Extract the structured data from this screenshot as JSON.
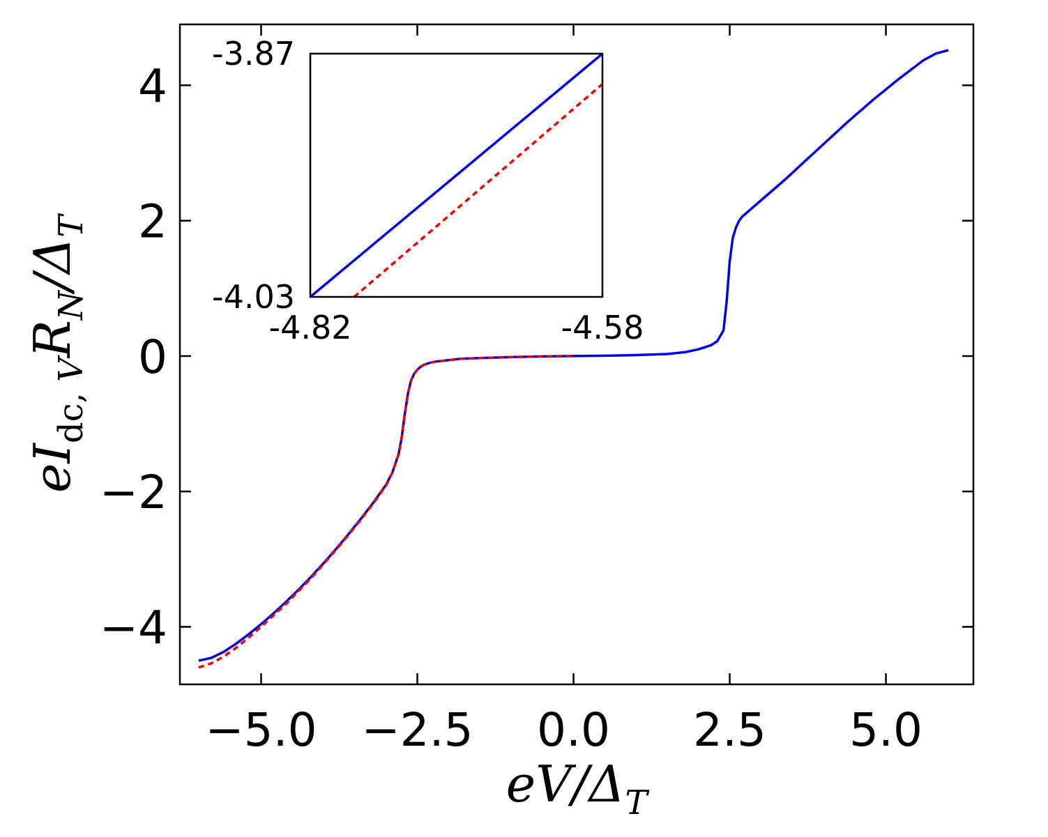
{
  "chart_data": [
    {
      "type": "line",
      "title": "",
      "xlabel": "eV/Δ_T",
      "ylabel": "eI_dc,V R_N/Δ_T",
      "xlabel_parts": {
        "a": "eV/Δ",
        "b": "T"
      },
      "ylabel_parts": {
        "a": "eI",
        "b": "dc, ",
        "c": "V",
        "d": "R",
        "e": "N",
        "f": "/Δ",
        "g": "T"
      },
      "xlim": [
        -6.3,
        6.4
      ],
      "ylim": [
        -4.85,
        4.9
      ],
      "xticks": [
        -5.0,
        -2.5,
        0.0,
        2.5,
        5.0
      ],
      "xtick_labels": [
        "−5.0",
        "−2.5",
        "0.0",
        "2.5",
        "5.0"
      ],
      "yticks": [
        -4,
        -2,
        0,
        2,
        4
      ],
      "ytick_labels": [
        "−4",
        "−2",
        "0",
        "2",
        "4"
      ],
      "grid": false,
      "series": [
        {
          "color": "#0000ee",
          "dash": "solid",
          "x": [
            -6.0,
            -5.8,
            -5.6,
            -5.4,
            -5.2,
            -5.0,
            -4.8,
            -4.6,
            -4.4,
            -4.2,
            -4.0,
            -3.8,
            -3.6,
            -3.4,
            -3.2,
            -3.0,
            -2.9,
            -2.8,
            -2.75,
            -2.7,
            -2.65,
            -2.6,
            -2.55,
            -2.5,
            -2.45,
            -2.4,
            -2.3,
            -2.2,
            -2.0,
            -1.8,
            -1.5,
            -1.0,
            -0.5,
            0.0,
            0.5,
            1.0,
            1.5,
            1.8,
            2.0,
            2.2,
            2.3,
            2.4,
            2.45,
            2.5,
            2.55,
            2.6,
            2.65,
            2.7,
            2.75,
            2.8,
            2.9,
            3.0,
            3.2,
            3.4,
            3.6,
            3.8,
            4.0,
            4.2,
            4.4,
            4.6,
            4.8,
            5.0,
            5.2,
            5.4,
            5.6,
            5.8,
            6.0
          ],
          "y": [
            -4.5,
            -4.46,
            -4.37,
            -4.25,
            -4.11,
            -3.96,
            -3.8,
            -3.63,
            -3.45,
            -3.26,
            -3.06,
            -2.85,
            -2.63,
            -2.4,
            -2.16,
            -1.9,
            -1.72,
            -1.45,
            -1.2,
            -0.85,
            -0.55,
            -0.36,
            -0.26,
            -0.2,
            -0.16,
            -0.13,
            -0.1,
            -0.08,
            -0.06,
            -0.04,
            -0.03,
            -0.015,
            -0.005,
            0.0,
            0.005,
            0.015,
            0.03,
            0.06,
            0.1,
            0.16,
            0.22,
            0.38,
            0.8,
            1.4,
            1.75,
            1.9,
            2.0,
            2.06,
            2.1,
            2.14,
            2.22,
            2.3,
            2.46,
            2.62,
            2.79,
            2.96,
            3.13,
            3.3,
            3.47,
            3.63,
            3.79,
            3.94,
            4.09,
            4.23,
            4.37,
            4.47,
            4.52
          ]
        },
        {
          "color": "#ee0000",
          "dash": "dashed",
          "x": [
            -6.0,
            -5.8,
            -5.6,
            -5.4,
            -5.2,
            -5.0,
            -4.8,
            -4.6,
            -4.4,
            -4.2,
            -4.0,
            -3.8,
            -3.6,
            -3.4,
            -3.2,
            -3.0,
            -2.9,
            -2.8,
            -2.75,
            -2.7,
            -2.65,
            -2.6,
            -2.55,
            -2.5,
            -2.45,
            -2.4,
            -2.3,
            -2.2,
            -2.0,
            -1.8,
            -1.5,
            -1.0,
            -0.5,
            0.0
          ],
          "y": [
            -4.6,
            -4.54,
            -4.44,
            -4.31,
            -4.16,
            -4.0,
            -3.83,
            -3.66,
            -3.47,
            -3.28,
            -3.07,
            -2.86,
            -2.64,
            -2.41,
            -2.17,
            -1.91,
            -1.72,
            -1.45,
            -1.2,
            -0.85,
            -0.55,
            -0.36,
            -0.26,
            -0.2,
            -0.16,
            -0.13,
            -0.1,
            -0.08,
            -0.06,
            -0.04,
            -0.03,
            -0.015,
            -0.005,
            0.0
          ]
        }
      ]
    },
    {
      "type": "line",
      "title": "",
      "inset": true,
      "xlim": [
        -4.82,
        -4.58
      ],
      "ylim": [
        -4.03,
        -3.87
      ],
      "xtick_labels": [
        "-4.82",
        "-4.58"
      ],
      "ytick_labels": [
        "-3.87",
        "-4.03"
      ],
      "series": [
        {
          "color": "#0000ee",
          "dash": "solid",
          "x": [
            -4.82,
            -4.58
          ],
          "y": [
            -4.03,
            -3.87
          ]
        },
        {
          "color": "#ee0000",
          "dash": "dashed",
          "x": [
            -4.784,
            -4.58
          ],
          "y": [
            -4.03,
            -3.89
          ]
        }
      ]
    }
  ]
}
